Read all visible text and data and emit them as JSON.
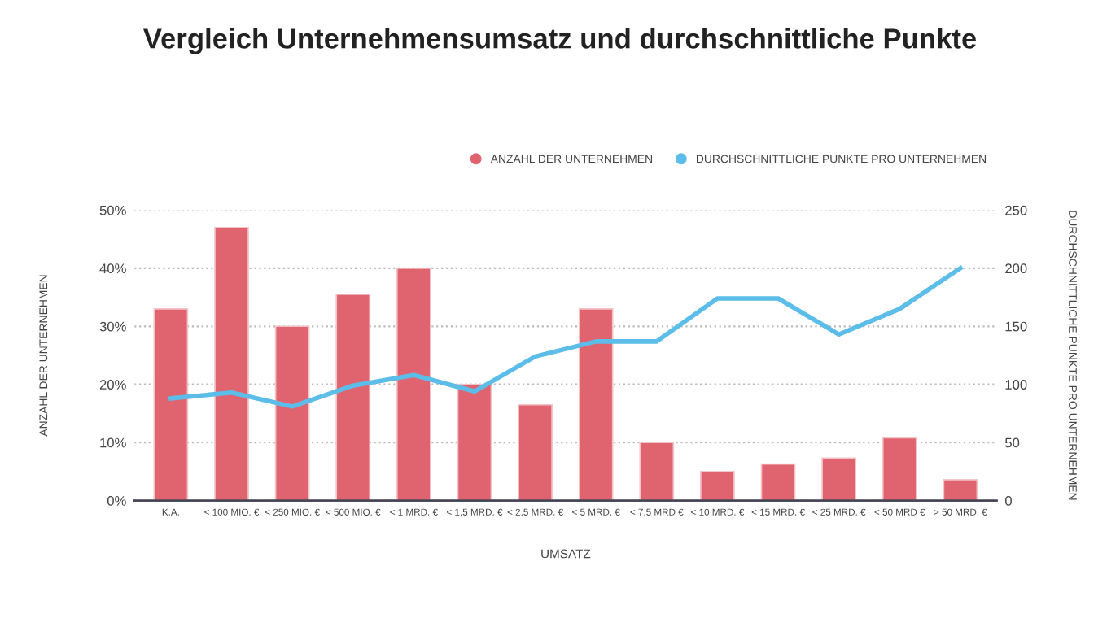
{
  "chart_data": {
    "type": "bar",
    "title": "Vergleich Unternehmensumsatz und durchschnittliche Punkte",
    "xlabel": "UMSATZ",
    "ylabel": "ANZAHL DER UNTERNEHMEN",
    "y2label": "DURCHSCHNITTLICHE PUNKTE PRO UNTERNEHMEN",
    "categories": [
      "K.A.",
      "< 100 MIO. €",
      "< 250 MIO. €",
      "< 500 MIO. €",
      "< 1 MRD. €",
      "< 1,5 MRD. €",
      "< 2,5 MRD. €",
      "< 5 MRD. €",
      "< 7,5 MRD €",
      "< 10 MRD. €",
      "< 15 MRD. €",
      "< 25 MRD. €",
      "< 50 MRD €",
      "> 50 MRD. €"
    ],
    "series": [
      {
        "name": "ANZAHL DER UNTERNEHMEN",
        "color": "#e06470",
        "values": [
          33,
          47,
          30,
          35.5,
          40,
          20,
          16.5,
          33,
          10,
          5,
          6.3,
          7.3,
          10.8,
          3.6
        ]
      },
      {
        "name": "DURCHSCHNITTLICHE PUNKTE PRO UNTERNEHMEN",
        "type": "line",
        "axis": "y2",
        "color": "#5bbde8",
        "marker": "none",
        "values": [
          88,
          93,
          81,
          99,
          108,
          94,
          124,
          137,
          137,
          174,
          174,
          143,
          165,
          200
        ]
      }
    ],
    "ylim": [
      0,
      50
    ],
    "yticks": [
      {
        "value": 0,
        "label": "0%"
      },
      {
        "value": 10,
        "label": "10%"
      },
      {
        "value": 20,
        "label": "20%"
      },
      {
        "value": 30,
        "label": "30%"
      },
      {
        "value": 40,
        "label": "40%"
      },
      {
        "value": 50,
        "label": "50%"
      }
    ],
    "y2lim": [
      0,
      250
    ],
    "y2ticks": [
      0,
      50,
      100,
      150,
      200,
      250
    ],
    "grid": "y",
    "legend": "top right"
  }
}
